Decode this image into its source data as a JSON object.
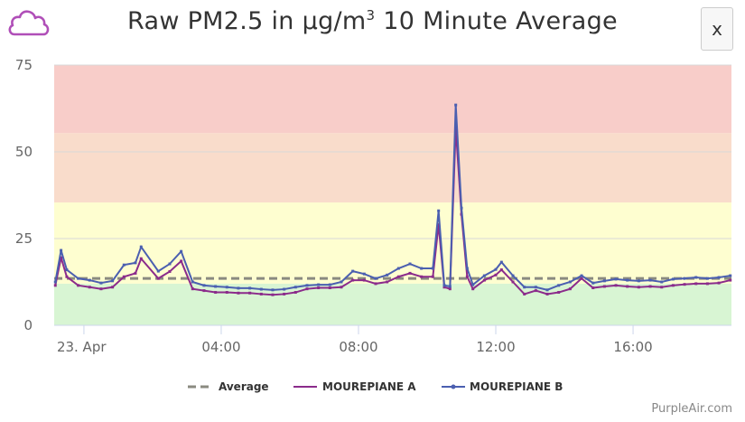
{
  "header": {
    "title_main": "Raw PM2.5 in µg/m",
    "title_sup": "3",
    "title_rest": " 10 Minute Average",
    "close_label": "x",
    "icon": "cloud-icon",
    "icon_color": "#b04fb8"
  },
  "credit": "PurpleAir.com",
  "chart_data": {
    "type": "line",
    "title": "Raw PM2.5 in µg/m³ 10 Minute Average",
    "xlabel": "",
    "ylabel": "",
    "ylim": [
      0,
      75
    ],
    "y_ticks": [
      "0",
      "25",
      "50",
      "75"
    ],
    "x_ticks": [
      {
        "label": "23. Apr",
        "time": "Apr 23 00:00"
      },
      {
        "label": "04:00",
        "time": "Apr 23 04:00"
      },
      {
        "label": "08:00",
        "time": "Apr 23 08:00"
      },
      {
        "label": "12:00",
        "time": "Apr 23 12:00"
      },
      {
        "label": "16:00",
        "time": "Apr 23 16:00"
      }
    ],
    "xlim": [
      "Apr 22 23:08",
      "Apr 23 18:52"
    ],
    "grid": true,
    "legend_position": "bottom",
    "bands": [
      {
        "from": 0,
        "to": 12,
        "color": "#d8f5d3"
      },
      {
        "from": 12,
        "to": 35.4,
        "color": "#fefed0"
      },
      {
        "from": 35.4,
        "to": 55.4,
        "color": "#f9dccb"
      },
      {
        "from": 55.4,
        "to": 75,
        "color": "#f8cdc9"
      }
    ],
    "average": {
      "name": "Average",
      "value": 13.5,
      "color": "#8a8a80"
    },
    "times": [
      "Apr 22 23:10",
      "Apr 22 23:20",
      "Apr 22 23:30",
      "Apr 22 23:50",
      "Apr 23 00:10",
      "Apr 23 00:30",
      "Apr 23 00:50",
      "Apr 23 01:10",
      "Apr 23 01:30",
      "Apr 23 01:40",
      "Apr 23 02:10",
      "Apr 23 02:30",
      "Apr 23 02:50",
      "Apr 23 03:10",
      "Apr 23 03:30",
      "Apr 23 03:50",
      "Apr 23 04:10",
      "Apr 23 04:30",
      "Apr 23 04:50",
      "Apr 23 05:10",
      "Apr 23 05:30",
      "Apr 23 05:50",
      "Apr 23 06:10",
      "Apr 23 06:30",
      "Apr 23 06:50",
      "Apr 23 07:10",
      "Apr 23 07:30",
      "Apr 23 07:50",
      "Apr 23 08:10",
      "Apr 23 08:30",
      "Apr 23 08:50",
      "Apr 23 09:10",
      "Apr 23 09:30",
      "Apr 23 09:50",
      "Apr 23 10:10",
      "Apr 23 10:20",
      "Apr 23 10:30",
      "Apr 23 10:40",
      "Apr 23 10:50",
      "Apr 23 11:00",
      "Apr 23 11:10",
      "Apr 23 11:20",
      "Apr 23 11:40",
      "Apr 23 12:00",
      "Apr 23 12:10",
      "Apr 23 12:30",
      "Apr 23 12:50",
      "Apr 23 13:10",
      "Apr 23 13:30",
      "Apr 23 13:50",
      "Apr 23 14:10",
      "Apr 23 14:30",
      "Apr 23 14:50",
      "Apr 23 15:10",
      "Apr 23 15:30",
      "Apr 23 15:50",
      "Apr 23 16:10",
      "Apr 23 16:30",
      "Apr 23 16:50",
      "Apr 23 17:10",
      "Apr 23 17:30",
      "Apr 23 17:50",
      "Apr 23 18:10",
      "Apr 23 18:30",
      "Apr 23 18:50"
    ],
    "series": [
      {
        "name": "MOUREPIANE A",
        "color": "#8b2b8b",
        "values": [
          11.5,
          19.5,
          14,
          11.5,
          11,
          10.5,
          11,
          14,
          15,
          19.2,
          13.5,
          15.5,
          18.5,
          10.5,
          10,
          9.5,
          9.5,
          9.3,
          9.3,
          9,
          8.8,
          9,
          9.5,
          10.5,
          10.8,
          10.8,
          11,
          13,
          13,
          12,
          12.5,
          14,
          15,
          14,
          14,
          29,
          11,
          10.5,
          57,
          32,
          14,
          10.5,
          13,
          14.5,
          16,
          12.5,
          9,
          10,
          9,
          9.5,
          10.5,
          13.5,
          10.8,
          11.2,
          11.5,
          11.2,
          11,
          11.2,
          11,
          11.5,
          11.8,
          12,
          12,
          12.2,
          13
        ]
      },
      {
        "name": "MOUREPIANE B",
        "color": "#4b5fb0",
        "values": [
          12.5,
          21.6,
          16,
          13.5,
          13,
          12.2,
          12.8,
          17.4,
          18,
          22.6,
          15.6,
          17.7,
          21.3,
          12.5,
          11.5,
          11.2,
          11,
          10.7,
          10.7,
          10.4,
          10.2,
          10.4,
          11,
          11.5,
          11.7,
          11.7,
          12.5,
          15.6,
          14.8,
          13.5,
          14.5,
          16.4,
          17.7,
          16.4,
          16.4,
          33,
          11.5,
          11.2,
          63.5,
          33.8,
          16.4,
          11.7,
          14.3,
          16.1,
          18.2,
          14.3,
          11,
          11,
          10.2,
          11.5,
          12.5,
          14.3,
          12.2,
          12.8,
          13.3,
          13,
          12.8,
          13,
          12.5,
          13.3,
          13.5,
          13.8,
          13.5,
          13.8,
          14.3
        ]
      }
    ]
  }
}
